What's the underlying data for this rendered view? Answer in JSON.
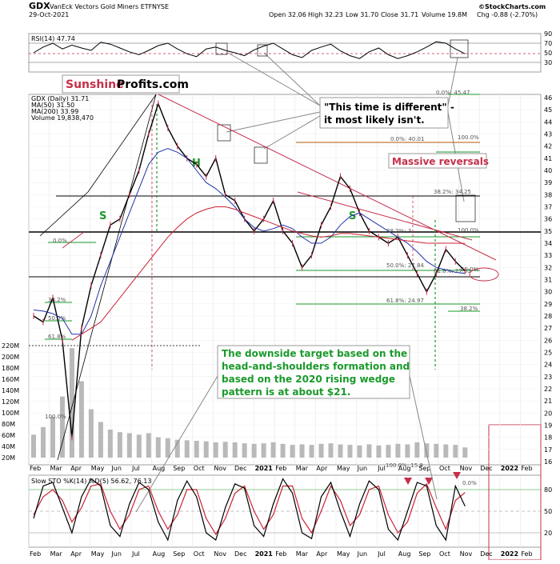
{
  "header": {
    "symbol": "GDX",
    "name": "VanEck Vectors Gold Miners ETF",
    "exchange": "NYSE",
    "date": "29-Oct-2021",
    "ohlc": "Open 32.06  High 32.23  Low 31.70  Close 31.71  Volume 19.8M  Chg -0.88 (-2.70%)",
    "open": "Open 32.06",
    "high": "High 32.23",
    "low": "Low 31.70",
    "close": "Close 31.71",
    "volume": "Volume 19.8M",
    "chg": "Chg -0.88 (-2.70%)",
    "logo": "©StockCharts.com"
  },
  "legend": {
    "rsi": "RSI(14) 47.74",
    "price": "GDX (Daily) 31.71",
    "ma50": "MA(50) 31.50",
    "ma200": "MA(200) 33.99",
    "volume": "Volume 19,838,470",
    "sto": "Slow STO %K(14) %D(5) 56.62, 76.13"
  },
  "branding": {
    "sunshine": "Sunshine",
    "profits": "Profits.com"
  },
  "annotations": {
    "time_different_1": "\"This time is different\" -",
    "time_different_2": "it most likely isn't.",
    "massive": "Massive reversals",
    "target_1": "The downside target based on the",
    "target_2": "head-and-shoulders formation and",
    "target_3": "based on the 2020 rising wedge",
    "target_4": "pattern is at about $21.",
    "s_left": "S",
    "h": "H",
    "s_right": "S"
  },
  "fib_labels": [
    {
      "text": "0.0%: 45.47"
    },
    {
      "text": "0.0%: 40.01"
    },
    {
      "text": "100.0%"
    },
    {
      "text": "38.2%: 34.25"
    },
    {
      "text": "38.2%: 3"
    },
    {
      "text": "100.0%"
    },
    {
      "text": "0.0%"
    },
    {
      "text": "50.0%: 27.84"
    },
    {
      "text": "61.8%: 27.33"
    },
    {
      "text": "50.0%"
    },
    {
      "text": "61.8%: 24.97"
    },
    {
      "text": "38.2%"
    },
    {
      "text": "38.2%"
    },
    {
      "text": "50.0%"
    },
    {
      "text": "61.8%"
    },
    {
      "text": "100.0%"
    },
    {
      "text": "100.0%: 15.9"
    },
    {
      "text": "0.0%"
    }
  ],
  "chart_data": {
    "type": "line",
    "x_tick_labels": [
      "Feb",
      "Mar",
      "Apr",
      "May",
      "Jun",
      "Jul",
      "Aug",
      "Sep",
      "Oct",
      "Nov",
      "Dec",
      "2021",
      "Feb",
      "Mar",
      "Apr",
      "May",
      "Jun",
      "Jul",
      "Aug",
      "Sep",
      "Oct",
      "Nov",
      "Dec",
      "2022",
      "Feb"
    ],
    "price_axis": {
      "ylim": [
        16,
        46
      ],
      "ticks": [
        16,
        17,
        18,
        19,
        20,
        21,
        22,
        23,
        24,
        25,
        26,
        27,
        28,
        29,
        30,
        31,
        32,
        33,
        34,
        35,
        36,
        37,
        38,
        39,
        40,
        41,
        42,
        43,
        44,
        45,
        46
      ]
    },
    "volume_axis": {
      "ticks": [
        "20M",
        "40M",
        "60M",
        "80M",
        "100M",
        "120M",
        "140M",
        "160M",
        "180M",
        "200M",
        "220M"
      ]
    },
    "rsi_axis": {
      "ylim": [
        10,
        90
      ],
      "ticks": [
        30,
        50,
        70,
        90
      ]
    },
    "sto_axis": {
      "ylim": [
        0,
        100
      ],
      "ticks": [
        20,
        50,
        80
      ]
    },
    "series": [
      {
        "name": "GDX (Daily)",
        "color": "#000000",
        "values": [
          28.0,
          27.5,
          29.5,
          26.0,
          18.0,
          27.0,
          30.5,
          33.0,
          35.5,
          36.0,
          38.0,
          40.0,
          43.0,
          45.5,
          43.5,
          42.0,
          41.0,
          40.5,
          39.5,
          41.0,
          38.0,
          37.5,
          36.0,
          35.0,
          36.0,
          37.5,
          35.0,
          34.0,
          32.0,
          33.0,
          35.5,
          37.0,
          39.5,
          38.5,
          36.5,
          35.0,
          34.5,
          34.0,
          34.5,
          33.0,
          31.5,
          30.0,
          31.5,
          33.5,
          32.5,
          31.71
        ]
      },
      {
        "name": "MA(50)",
        "color": "#2233aa",
        "values": [
          28.5,
          28.4,
          28.2,
          27.8,
          26.5,
          26.5,
          28.0,
          30.5,
          32.5,
          34.5,
          36.5,
          38.5,
          40.5,
          41.5,
          41.8,
          41.5,
          41.0,
          40.0,
          39.0,
          38.5,
          37.8,
          37.0,
          36.0,
          35.3,
          35.0,
          35.2,
          35.5,
          35.2,
          34.5,
          34.0,
          34.0,
          34.5,
          35.5,
          36.2,
          36.5,
          36.0,
          35.5,
          35.0,
          34.5,
          34.0,
          33.3,
          32.5,
          32.0,
          31.8,
          31.6,
          31.5
        ]
      },
      {
        "name": "MA(200)",
        "color": "#cc2233",
        "values": [
          null,
          null,
          null,
          null,
          26.0,
          26.5,
          27.0,
          27.5,
          28.5,
          29.5,
          30.5,
          31.5,
          32.5,
          33.5,
          34.5,
          35.3,
          36.0,
          36.5,
          36.8,
          37.0,
          37.0,
          36.8,
          36.5,
          36.2,
          35.9,
          35.6,
          35.3,
          35.0,
          34.8,
          34.6,
          34.5,
          34.6,
          34.8,
          34.8,
          34.7,
          34.6,
          34.5,
          34.4,
          34.3,
          34.2,
          34.1,
          34.0,
          34.0,
          34.0,
          34.0,
          33.99
        ]
      }
    ],
    "volume_values": [
      45,
      60,
      80,
      120,
      215,
      150,
      95,
      70,
      55,
      50,
      48,
      45,
      48,
      40,
      38,
      35,
      34,
      33,
      32,
      30,
      31,
      30,
      28,
      27,
      28,
      30,
      27,
      25,
      26,
      25,
      27,
      28,
      26,
      25,
      24,
      26,
      24,
      25,
      27,
      26,
      30,
      28,
      27,
      26,
      25,
      20
    ],
    "rsi_values": [
      50,
      62,
      70,
      58,
      66,
      60,
      55,
      72,
      68,
      60,
      52,
      46,
      55,
      65,
      70,
      58,
      48,
      42,
      58,
      62,
      55,
      50,
      44,
      56,
      64,
      70,
      58,
      46,
      40,
      55,
      62,
      68,
      54,
      44,
      38,
      52,
      60,
      46,
      38,
      44,
      52,
      62,
      73,
      70,
      58,
      48
    ],
    "sto_k_values": [
      40,
      85,
      90,
      55,
      20,
      70,
      95,
      85,
      30,
      15,
      60,
      90,
      80,
      35,
      10,
      65,
      92,
      70,
      20,
      10,
      55,
      88,
      82,
      30,
      15,
      60,
      95,
      75,
      20,
      12,
      70,
      90,
      50,
      15,
      60,
      92,
      80,
      25,
      10,
      50,
      90,
      85,
      30,
      10,
      85,
      57
    ],
    "sto_d_values": [
      45,
      70,
      80,
      65,
      35,
      55,
      85,
      88,
      50,
      25,
      45,
      80,
      85,
      50,
      25,
      45,
      80,
      80,
      40,
      18,
      40,
      75,
      85,
      50,
      25,
      45,
      85,
      85,
      40,
      20,
      50,
      85,
      65,
      30,
      45,
      80,
      85,
      45,
      20,
      35,
      75,
      88,
      55,
      25,
      65,
      76
    ]
  }
}
